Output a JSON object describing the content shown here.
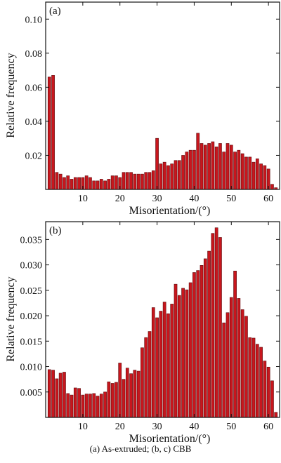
{
  "figure_caption": "(a) As-extruded; (b, c) CBB",
  "colors": {
    "bar_fill": "#c8161d",
    "bar_stroke": "#5a0a0c",
    "axis": "#111111",
    "background": "#ffffff"
  },
  "chart_data": [
    {
      "type": "bar",
      "panel_label": "(a)",
      "xlabel": "Misorientation/(°)",
      "ylabel": "Relative frequency",
      "xlim": [
        0,
        63
      ],
      "ylim": [
        0,
        0.11
      ],
      "xticks": [
        10,
        20,
        30,
        40,
        50,
        60
      ],
      "xtick_labels": [
        "10",
        "20",
        "30",
        "40",
        "50",
        "60"
      ],
      "yticks": [
        0.02,
        0.04,
        0.06,
        0.08,
        0.1
      ],
      "ytick_labels": [
        "0.02",
        "0.04",
        "0.06",
        "0.08",
        "0.10"
      ],
      "bin_width": 1,
      "x": [
        1,
        2,
        3,
        4,
        5,
        6,
        7,
        8,
        9,
        10,
        11,
        12,
        13,
        14,
        15,
        16,
        17,
        18,
        19,
        20,
        21,
        22,
        23,
        24,
        25,
        26,
        27,
        28,
        29,
        30,
        31,
        32,
        33,
        34,
        35,
        36,
        37,
        38,
        39,
        40,
        41,
        42,
        43,
        44,
        45,
        46,
        47,
        48,
        49,
        50,
        51,
        52,
        53,
        54,
        55,
        56,
        57,
        58,
        59,
        60,
        61,
        62
      ],
      "values": [
        0.066,
        0.067,
        0.01,
        0.009,
        0.007,
        0.008,
        0.006,
        0.007,
        0.007,
        0.007,
        0.008,
        0.007,
        0.005,
        0.005,
        0.006,
        0.005,
        0.006,
        0.008,
        0.008,
        0.007,
        0.01,
        0.01,
        0.01,
        0.009,
        0.009,
        0.009,
        0.01,
        0.01,
        0.011,
        0.03,
        0.015,
        0.016,
        0.014,
        0.015,
        0.017,
        0.017,
        0.02,
        0.022,
        0.023,
        0.023,
        0.033,
        0.027,
        0.026,
        0.027,
        0.028,
        0.025,
        0.027,
        0.022,
        0.027,
        0.026,
        0.022,
        0.023,
        0.021,
        0.019,
        0.019,
        0.016,
        0.018,
        0.015,
        0.014,
        0.012,
        0.003,
        0.001
      ]
    },
    {
      "type": "bar",
      "panel_label": "(b)",
      "xlabel": "Misorientation/(°)",
      "ylabel": "Relative frequency",
      "xlim": [
        0,
        63
      ],
      "ylim": [
        0,
        0.0385
      ],
      "xticks": [
        10,
        20,
        30,
        40,
        50,
        60
      ],
      "xtick_labels": [
        "10",
        "20",
        "30",
        "40",
        "50",
        "60"
      ],
      "yticks": [
        0.005,
        0.01,
        0.015,
        0.02,
        0.025,
        0.03,
        0.035
      ],
      "ytick_labels": [
        "0.005",
        "0.010",
        "0.015",
        "0.020",
        "0.025",
        "0.030",
        "0.035"
      ],
      "bin_width": 1,
      "x": [
        1,
        2,
        3,
        4,
        5,
        6,
        7,
        8,
        9,
        10,
        11,
        12,
        13,
        14,
        15,
        16,
        17,
        18,
        19,
        20,
        21,
        22,
        23,
        24,
        25,
        26,
        27,
        28,
        29,
        30,
        31,
        32,
        33,
        34,
        35,
        36,
        37,
        38,
        39,
        40,
        41,
        42,
        43,
        44,
        45,
        46,
        47,
        48,
        49,
        50,
        51,
        52,
        53,
        54,
        55,
        56,
        57,
        58,
        59,
        60,
        61,
        62
      ],
      "values": [
        0.0094,
        0.0093,
        0.0076,
        0.0087,
        0.0089,
        0.0047,
        0.0044,
        0.0058,
        0.0057,
        0.0044,
        0.0046,
        0.0046,
        0.0047,
        0.0042,
        0.0046,
        0.005,
        0.007,
        0.0067,
        0.0069,
        0.0107,
        0.0075,
        0.0097,
        0.0086,
        0.0093,
        0.0091,
        0.0137,
        0.0157,
        0.0169,
        0.0216,
        0.0196,
        0.0209,
        0.0227,
        0.0204,
        0.0223,
        0.0262,
        0.024,
        0.0254,
        0.0251,
        0.0265,
        0.0285,
        0.0289,
        0.0299,
        0.0312,
        0.0327,
        0.0362,
        0.0373,
        0.0354,
        0.0186,
        0.0206,
        0.0236,
        0.0288,
        0.0234,
        0.0212,
        0.0199,
        0.0157,
        0.0156,
        0.0144,
        0.0138,
        0.0111,
        0.0099,
        0.0072,
        0.001
      ]
    }
  ]
}
